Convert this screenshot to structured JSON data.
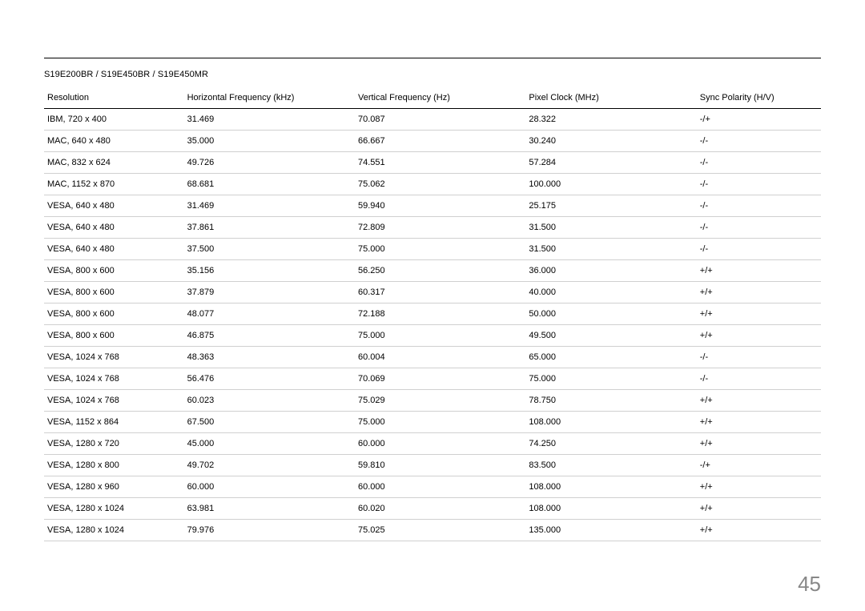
{
  "page": {
    "model_line": "S19E200BR / S19E450BR / S19E450MR",
    "page_number": "45"
  },
  "table": {
    "columns": [
      "Resolution",
      "Horizontal Frequency (kHz)",
      "Vertical Frequency (Hz)",
      "Pixel Clock (MHz)",
      "Sync Polarity (H/V)"
    ],
    "rows": [
      [
        "IBM, 720 x 400",
        "31.469",
        "70.087",
        "28.322",
        "-/+"
      ],
      [
        "MAC, 640 x 480",
        "35.000",
        "66.667",
        "30.240",
        "-/-"
      ],
      [
        "MAC, 832 x 624",
        "49.726",
        "74.551",
        "57.284",
        "-/-"
      ],
      [
        "MAC, 1152 x 870",
        "68.681",
        "75.062",
        "100.000",
        "-/-"
      ],
      [
        "VESA, 640 x 480",
        "31.469",
        "59.940",
        "25.175",
        "-/-"
      ],
      [
        "VESA, 640 x 480",
        "37.861",
        "72.809",
        "31.500",
        "-/-"
      ],
      [
        "VESA, 640 x 480",
        "37.500",
        "75.000",
        "31.500",
        "-/-"
      ],
      [
        "VESA, 800 x 600",
        "35.156",
        "56.250",
        "36.000",
        "+/+"
      ],
      [
        "VESA, 800 x 600",
        "37.879",
        "60.317",
        "40.000",
        "+/+"
      ],
      [
        "VESA, 800 x 600",
        "48.077",
        "72.188",
        "50.000",
        "+/+"
      ],
      [
        "VESA, 800 x 600",
        "46.875",
        "75.000",
        "49.500",
        "+/+"
      ],
      [
        "VESA, 1024 x 768",
        "48.363",
        "60.004",
        "65.000",
        "-/-"
      ],
      [
        "VESA, 1024 x 768",
        "56.476",
        "70.069",
        "75.000",
        "-/-"
      ],
      [
        "VESA, 1024 x 768",
        "60.023",
        "75.029",
        "78.750",
        "+/+"
      ],
      [
        "VESA, 1152 x 864",
        "67.500",
        "75.000",
        "108.000",
        "+/+"
      ],
      [
        "VESA, 1280 x 720",
        "45.000",
        "60.000",
        "74.250",
        "+/+"
      ],
      [
        "VESA, 1280 x 800",
        "49.702",
        "59.810",
        "83.500",
        "-/+"
      ],
      [
        "VESA, 1280 x 960",
        "60.000",
        "60.000",
        "108.000",
        "+/+"
      ],
      [
        "VESA, 1280 x 1024",
        "63.981",
        "60.020",
        "108.000",
        "+/+"
      ],
      [
        "VESA, 1280 x 1024",
        "79.976",
        "75.025",
        "135.000",
        "+/+"
      ]
    ]
  },
  "style": {
    "page_bg": "#ffffff",
    "text_color": "#000000",
    "row_border_color": "#d0d0d0",
    "header_border_color": "#000000",
    "page_number_color": "#888888",
    "font_size_body": 11,
    "font_size_pagenum": 26,
    "col_widths_pct": [
      18,
      22,
      22,
      22,
      16
    ]
  }
}
